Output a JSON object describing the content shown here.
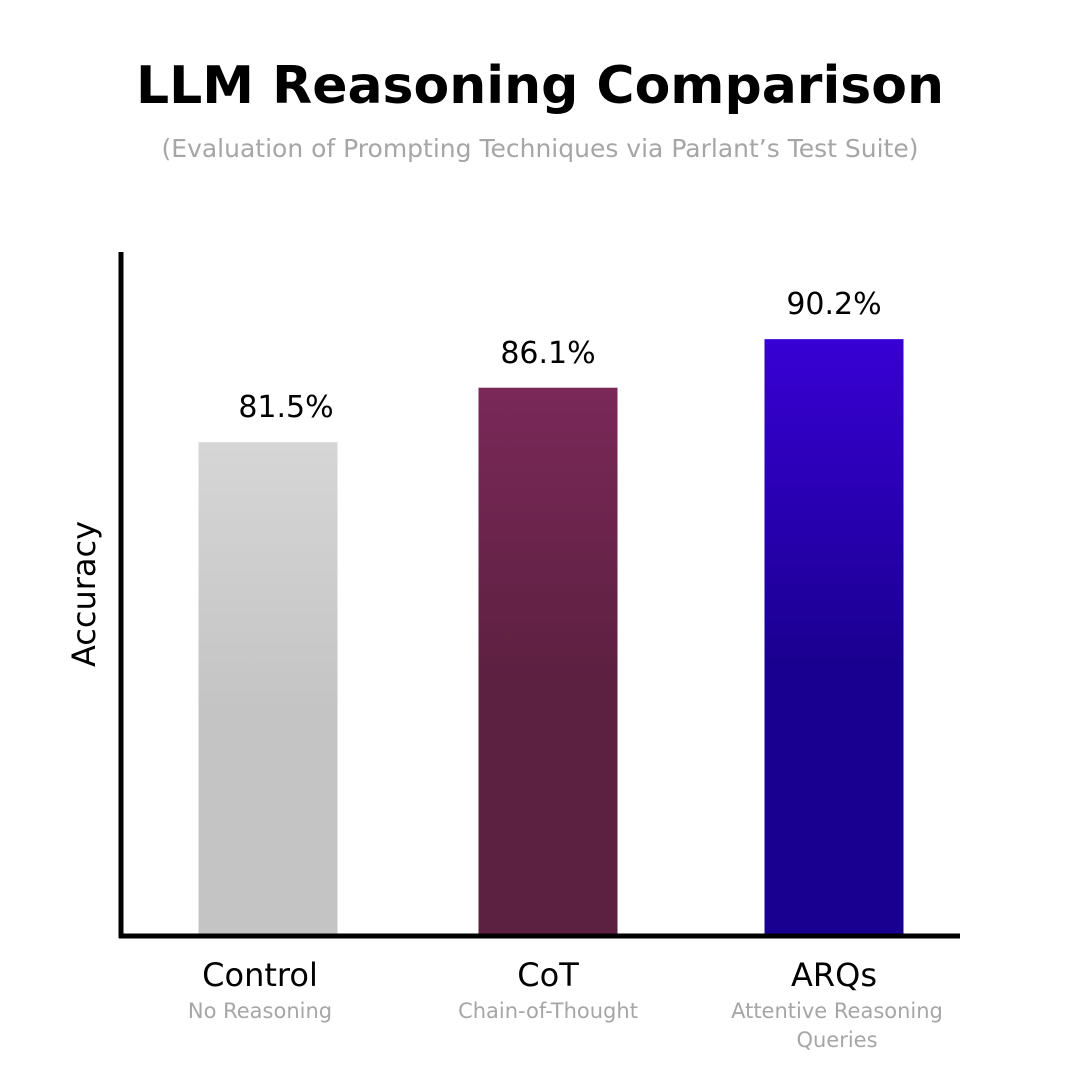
{
  "chart_data": {
    "type": "bar",
    "title": "LLM Reasoning Comparison",
    "subtitle": "(Evaluation of Prompting Techniques via Parlant’s Test Suite)",
    "xlabel": "",
    "ylabel": "Accuracy",
    "categories": [
      "Control",
      "CoT",
      "ARQs"
    ],
    "category_descriptions": [
      "No Reasoning",
      "Chain-of-Thought",
      "Attentive Reasoning Queries"
    ],
    "values": [
      81.5,
      86.1,
      90.2
    ],
    "value_labels": [
      "81.5%",
      "86.1%",
      "90.2%"
    ],
    "unit": "%",
    "ylim": [
      40,
      100
    ],
    "grid": false,
    "legend": "none",
    "bar_colors": [
      [
        "#d6d6d6",
        "#c4c4c4"
      ],
      [
        "#7a2858",
        "#5c2040"
      ],
      [
        "#3800d4",
        "#1a0090"
      ]
    ],
    "axis_color": "#000000"
  }
}
